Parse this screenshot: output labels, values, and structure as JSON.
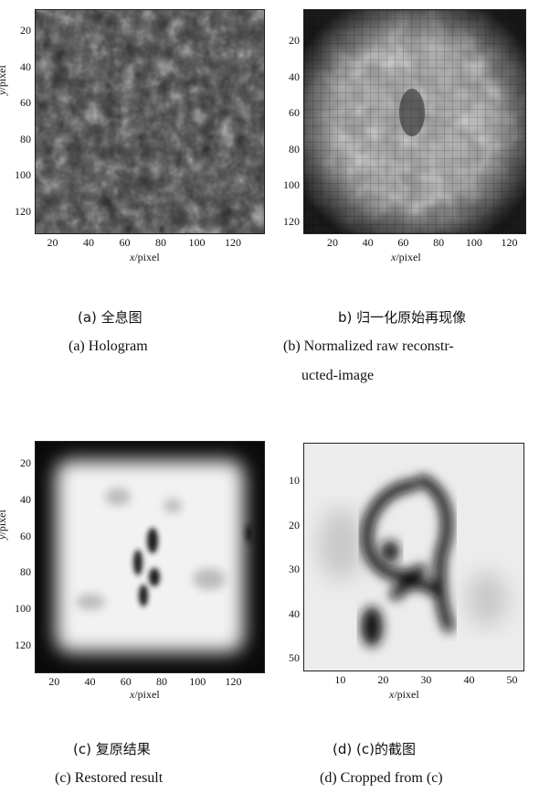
{
  "panels": [
    {
      "id": "a",
      "caption_zh": "(a) 全息图",
      "caption_en": "(a) Hologram",
      "caption_en_line2": "",
      "xlabel": "x/pixel",
      "ylabel": "y/pixel",
      "xticks": [
        "20",
        "40",
        "60",
        "80",
        "100",
        "120"
      ],
      "yticks": [
        "20",
        "40",
        "60",
        "80",
        "100",
        "120"
      ],
      "image_style": "dark-speckle"
    },
    {
      "id": "b",
      "caption_zh": "b) 归一化原始再现像",
      "caption_en": "(b) Normalized raw reconstr-",
      "caption_en_line2": "ucted-image",
      "xlabel": "x/pixel",
      "ylabel": "",
      "xticks": [
        "20",
        "40",
        "60",
        "80",
        "100",
        "120"
      ],
      "yticks": [
        "20",
        "40",
        "60",
        "80",
        "100",
        "120"
      ],
      "image_style": "gray-grid"
    },
    {
      "id": "c",
      "caption_zh": "(c) 复原结果",
      "caption_en": "(c) Restored result",
      "caption_en_line2": "",
      "xlabel": "x/pixel",
      "ylabel": "y/pixel",
      "xticks": [
        "20",
        "40",
        "60",
        "80",
        "100",
        "120"
      ],
      "yticks": [
        "20",
        "40",
        "60",
        "80",
        "100",
        "120"
      ],
      "image_style": "light-restored"
    },
    {
      "id": "d",
      "caption_zh": "(d) (c)的截图",
      "caption_en": "(d) Cropped from (c)",
      "caption_en_line2": "",
      "xlabel": "x/pixel",
      "ylabel": "",
      "xticks": [
        "10",
        "20",
        "30",
        "40",
        "50"
      ],
      "yticks": [
        "10",
        "20",
        "30",
        "40",
        "50"
      ],
      "image_style": "crop-glyph"
    }
  ]
}
